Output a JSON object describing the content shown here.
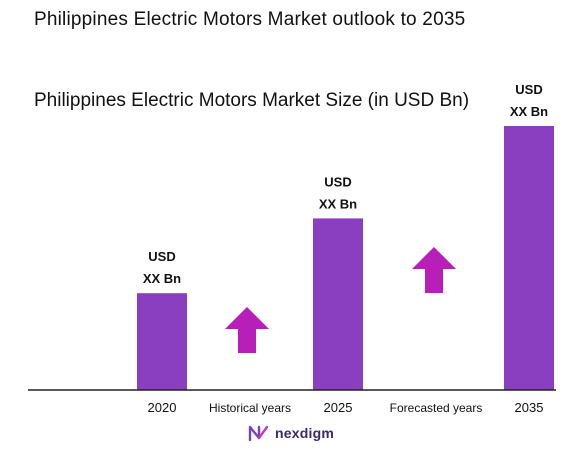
{
  "chart_data": {
    "type": "bar",
    "title": "Philippines Electric Motors Market outlook to 2035",
    "subtitle": "Philippines Electric Motors Market Size (in USD Bn)",
    "categories": [
      "2020",
      "2025",
      "2035"
    ],
    "values": [
      2.2,
      3.9,
      6.0
    ],
    "data_labels": [
      [
        "USD",
        "XX Bn"
      ],
      [
        "USD",
        "XX Bn"
      ],
      [
        "USD",
        "XX Bn"
      ]
    ],
    "period_labels": [
      "Historical years",
      "Forecasted years"
    ],
    "ylim": [
      0,
      6.0
    ],
    "grid": false,
    "colors": {
      "bar": "#8a3fc0",
      "arrow": "#b81fb8",
      "axis": "#222222"
    }
  },
  "brand": {
    "name": "nexdigm"
  }
}
